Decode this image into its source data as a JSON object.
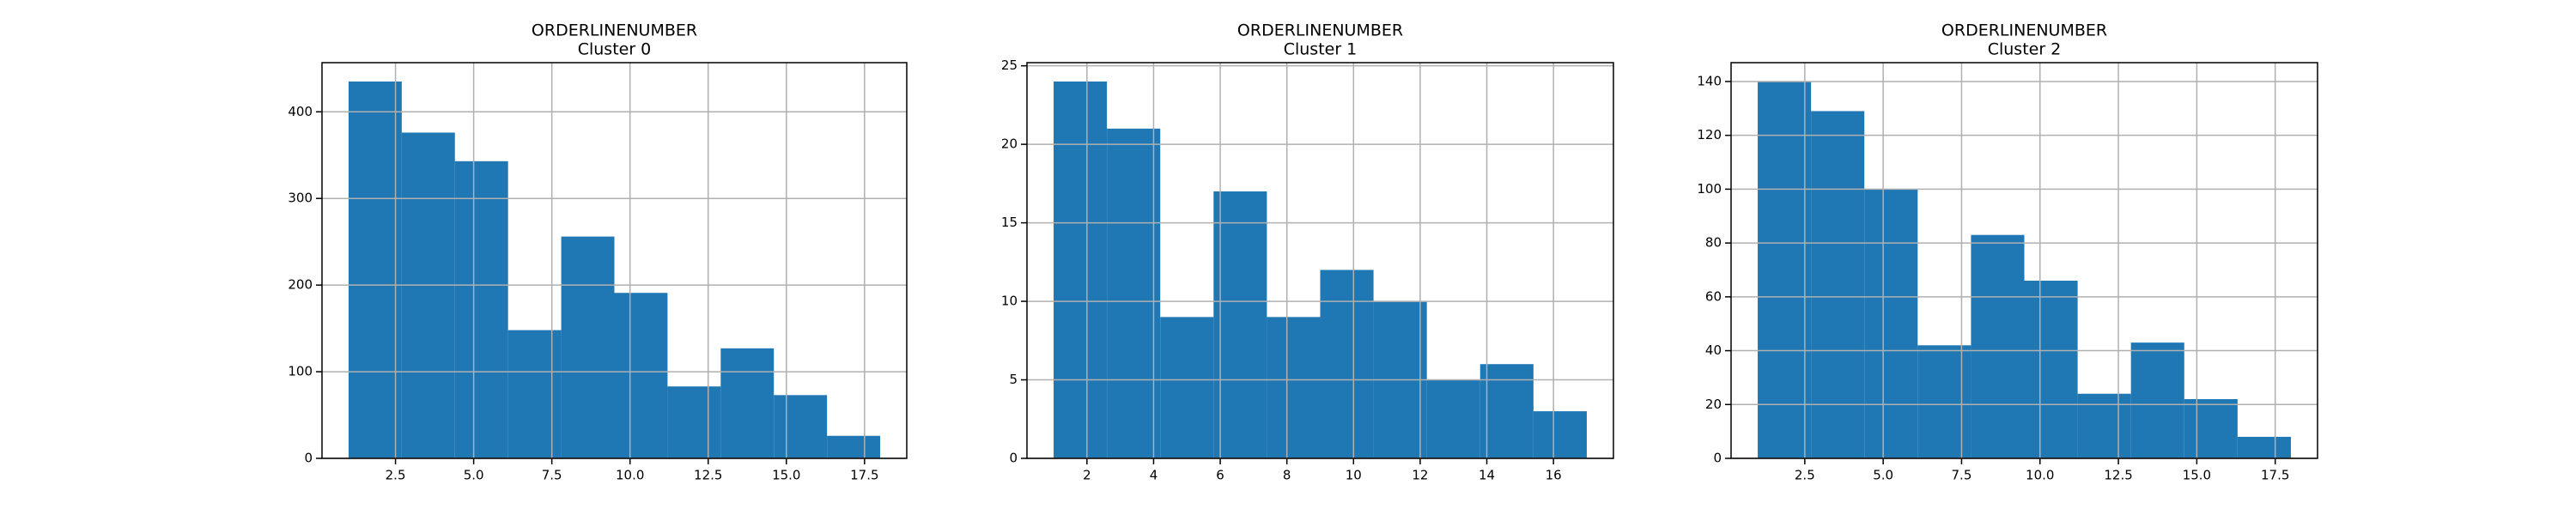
{
  "chart_data": [
    {
      "type": "histogram",
      "title": "ORDERLINENUMBER",
      "subtitle": "Cluster 0",
      "color": "#1f77b4",
      "grid": true,
      "bins": [
        1,
        2.7,
        4.4,
        6.1,
        7.8,
        9.5,
        11.2,
        12.9,
        14.6,
        16.3,
        18
      ],
      "values": [
        435,
        376,
        343,
        148,
        256,
        191,
        83,
        127,
        73,
        26
      ],
      "xlim": [
        0.15,
        18.85
      ],
      "ylim": [
        0,
        456.75
      ],
      "xticks": [
        2.5,
        {
          "value": 5,
          "label": "5.0"
        },
        7.5,
        {
          "value": 10,
          "label": "10.0"
        },
        12.5,
        {
          "value": 15,
          "label": "15.0"
        },
        17.5
      ],
      "yticks": [
        0,
        100,
        200,
        300,
        400
      ]
    },
    {
      "type": "histogram",
      "title": "ORDERLINENUMBER",
      "subtitle": "Cluster 1",
      "color": "#1f77b4",
      "grid": true,
      "bins": [
        1,
        2.6,
        4.2,
        5.8,
        7.4,
        9,
        10.6,
        12.2,
        13.8,
        15.4,
        17
      ],
      "values": [
        24,
        21,
        9,
        17,
        9,
        12,
        10,
        5,
        6,
        3
      ],
      "xlim": [
        0.2,
        17.8
      ],
      "ylim": [
        0,
        25.2
      ],
      "xticks": [
        2,
        4,
        6,
        8,
        10,
        12,
        14,
        16
      ],
      "yticks": [
        0,
        5,
        10,
        15,
        20,
        25
      ]
    },
    {
      "type": "histogram",
      "title": "ORDERLINENUMBER",
      "subtitle": "Cluster 2",
      "color": "#1f77b4",
      "grid": true,
      "bins": [
        1,
        2.7,
        4.4,
        6.1,
        7.8,
        9.5,
        11.2,
        12.9,
        14.6,
        16.3,
        18
      ],
      "values": [
        140,
        129,
        100,
        42,
        83,
        66,
        24,
        43,
        22,
        8
      ],
      "xlim": [
        0.15,
        18.85
      ],
      "ylim": [
        0,
        147
      ],
      "xticks": [
        2.5,
        {
          "value": 5,
          "label": "5.0"
        },
        7.5,
        {
          "value": 10,
          "label": "10.0"
        },
        12.5,
        {
          "value": 15,
          "label": "15.0"
        },
        17.5
      ],
      "yticks": [
        0,
        20,
        40,
        60,
        80,
        100,
        120,
        140
      ]
    }
  ]
}
